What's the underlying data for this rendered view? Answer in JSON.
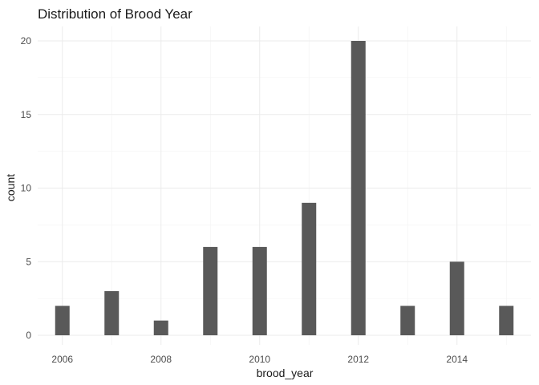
{
  "chart_data": {
    "type": "bar",
    "title": "Distribution of Brood Year",
    "xlabel": "brood_year",
    "ylabel": "count",
    "x": [
      2006,
      2007,
      2008,
      2009,
      2010,
      2011,
      2012,
      2013,
      2014,
      2015
    ],
    "values": [
      2,
      3,
      1,
      6,
      6,
      9,
      20,
      2,
      5,
      2
    ],
    "xlim": [
      2005.5,
      2015.5
    ],
    "ylim": [
      0,
      21
    ],
    "x_ticks": [
      2006,
      2008,
      2010,
      2012,
      2014
    ],
    "y_ticks": [
      0,
      5,
      10,
      15,
      20
    ],
    "grid": true,
    "bar_color": "#595959",
    "background": "#ffffff",
    "grid_color": "#ebebeb"
  }
}
